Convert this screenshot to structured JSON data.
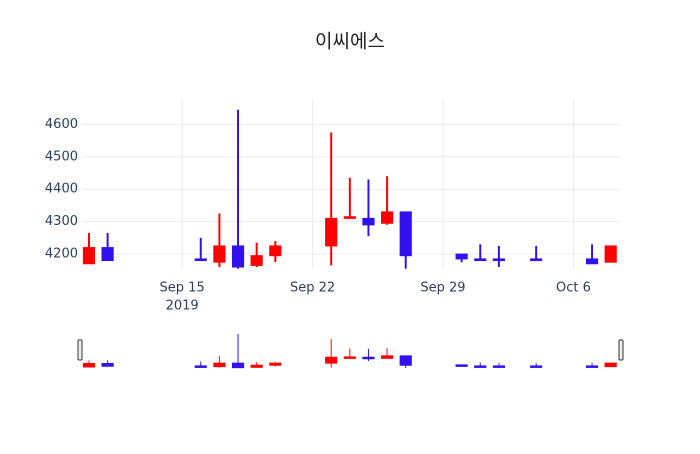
{
  "chart_data": {
    "type": "candlestick",
    "title": "이씨에스",
    "x": [
      "2019-09-10",
      "2019-09-11",
      "2019-09-16",
      "2019-09-17",
      "2019-09-18",
      "2019-09-19",
      "2019-09-20",
      "2019-09-23",
      "2019-09-24",
      "2019-09-25",
      "2019-09-26",
      "2019-09-27",
      "2019-09-30",
      "2019-10-01",
      "2019-10-02",
      "2019-10-04",
      "2019-10-07",
      "2019-10-08"
    ],
    "open": [
      4170,
      4220,
      4185,
      4175,
      4225,
      4165,
      4195,
      4225,
      4310,
      4310,
      4295,
      4330,
      4200,
      4185,
      4185,
      4185,
      4185,
      4175
    ],
    "high": [
      4265,
      4265,
      4250,
      4325,
      4645,
      4235,
      4240,
      4575,
      4435,
      4430,
      4440,
      4330,
      4200,
      4230,
      4225,
      4225,
      4230,
      4225
    ],
    "low": [
      4170,
      4180,
      4180,
      4160,
      4155,
      4160,
      4175,
      4165,
      4310,
      4255,
      4290,
      4155,
      4175,
      4180,
      4160,
      4180,
      4170,
      4175
    ],
    "close": [
      4220,
      4180,
      4180,
      4225,
      4160,
      4195,
      4225,
      4310,
      4315,
      4290,
      4330,
      4195,
      4185,
      4180,
      4180,
      4180,
      4170,
      4225
    ],
    "increasing_color": "#ff0000",
    "decreasing_color": "#3311ee",
    "xlim": [
      "2019-09-09T15:00:00Z",
      "2019-10-08T12:00:00Z"
    ],
    "xticks": [
      {
        "value": "2019-09-15",
        "label": "Sep 15"
      },
      {
        "value": "2019-09-22",
        "label": "Sep 22"
      },
      {
        "value": "2019-09-29",
        "label": "Sep 29"
      },
      {
        "value": "2019-10-06",
        "label": "Oct 6"
      }
    ],
    "xtick_year": "2019",
    "ylim": [
      4157,
      4675
    ],
    "yticks": [
      4200,
      4300,
      4400,
      4500,
      4600
    ],
    "grid": true,
    "rangeslider": true
  }
}
